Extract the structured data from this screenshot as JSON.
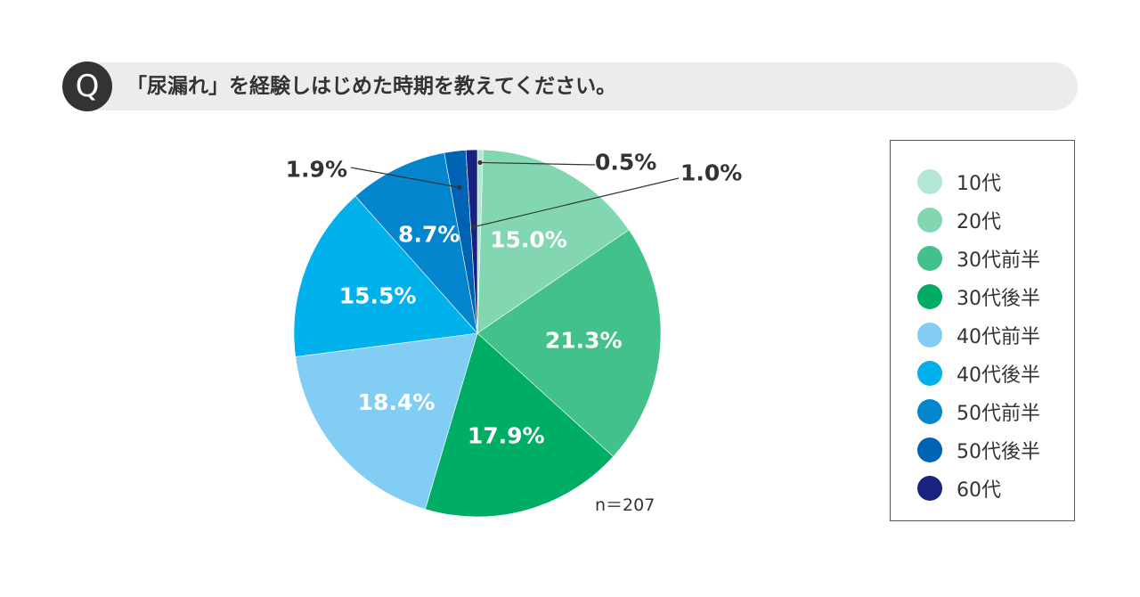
{
  "question": {
    "badge": "Q",
    "text": "「尿漏れ」を経験しはじめた時期を教えてください。"
  },
  "chart_data": {
    "type": "pie",
    "categories": [
      "10代",
      "20代",
      "30代前半",
      "30代後半",
      "40代前半",
      "40代後半",
      "50代前半",
      "50代後半",
      "60代"
    ],
    "values": [
      0.5,
      15.0,
      21.3,
      17.9,
      18.4,
      15.5,
      8.7,
      1.9,
      1.0
    ],
    "labels": [
      "0.5%",
      "15.0%",
      "21.3%",
      "17.9%",
      "18.4%",
      "15.5%",
      "8.7%",
      "1.9%",
      "1.0%"
    ],
    "colors": [
      "#b3e6d4",
      "#82d6b1",
      "#43c18c",
      "#00ad64",
      "#82cdf3",
      "#00b1ec",
      "#0386cd",
      "#0062b2",
      "#1a2280"
    ],
    "sample_note": "n＝207",
    "legend_position": "right"
  }
}
